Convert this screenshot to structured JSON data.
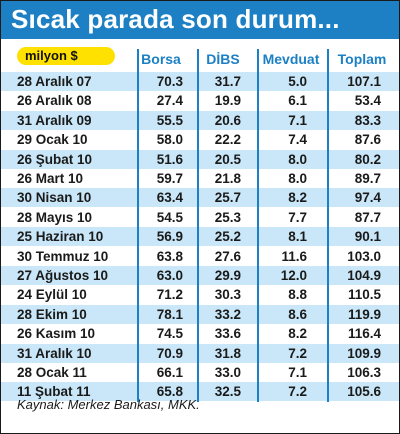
{
  "title": "Sıcak parada son durum...",
  "source": "Kaynak: Merkez Bankası, MKK.",
  "colors": {
    "accent": "#1d80c4",
    "band": "#c9e7f8",
    "unit_pill": "#ffe100",
    "text": "#1a1a1a"
  },
  "chart_data": {
    "type": "table",
    "unit_label": "milyon $",
    "columns": [
      "Borsa",
      "DİBS",
      "Mevduat",
      "Toplam"
    ],
    "rows": [
      {
        "date": "28 Aralık 07",
        "values": [
          "70.3",
          "31.7",
          "5.0",
          "107.1"
        ]
      },
      {
        "date": "26 Aralık 08",
        "values": [
          "27.4",
          "19.9",
          "6.1",
          "53.4"
        ]
      },
      {
        "date": "31 Aralık 09",
        "values": [
          "55.5",
          "20.6",
          "7.1",
          "83.3"
        ]
      },
      {
        "date": "29 Ocak 10",
        "values": [
          "58.0",
          "22.2",
          "7.4",
          "87.6"
        ]
      },
      {
        "date": "26 Şubat 10",
        "values": [
          "51.6",
          "20.5",
          "8.0",
          "80.2"
        ]
      },
      {
        "date": "26 Mart 10",
        "values": [
          "59.7",
          "21.8",
          "8.0",
          "89.7"
        ]
      },
      {
        "date": "30 Nisan 10",
        "values": [
          "63.4",
          "25.7",
          "8.2",
          "97.4"
        ]
      },
      {
        "date": "28 Mayıs 10",
        "values": [
          "54.5",
          "25.3",
          "7.7",
          "87.7"
        ]
      },
      {
        "date": "25 Haziran 10",
        "values": [
          "56.9",
          "25.2",
          "8.1",
          "90.1"
        ]
      },
      {
        "date": "30 Temmuz 10",
        "values": [
          "63.8",
          "27.6",
          "11.6",
          "103.0"
        ]
      },
      {
        "date": "27 Ağustos 10",
        "values": [
          "63.0",
          "29.9",
          "12.0",
          "104.9"
        ]
      },
      {
        "date": "24 Eylül 10",
        "values": [
          "71.2",
          "30.3",
          "8.8",
          "110.5"
        ]
      },
      {
        "date": "28 Ekim 10",
        "values": [
          "78.1",
          "33.2",
          "8.6",
          "119.9"
        ]
      },
      {
        "date": "26 Kasım 10",
        "values": [
          "74.5",
          "33.6",
          "8.2",
          "116.4"
        ]
      },
      {
        "date": "31 Aralık 10",
        "values": [
          "70.9",
          "31.8",
          "7.2",
          "109.9"
        ]
      },
      {
        "date": "28 Ocak 11",
        "values": [
          "66.1",
          "33.0",
          "7.1",
          "106.3"
        ]
      },
      {
        "date": "11 Şubat 11",
        "values": [
          "65.8",
          "32.5",
          "7.2",
          "105.6"
        ]
      }
    ]
  }
}
